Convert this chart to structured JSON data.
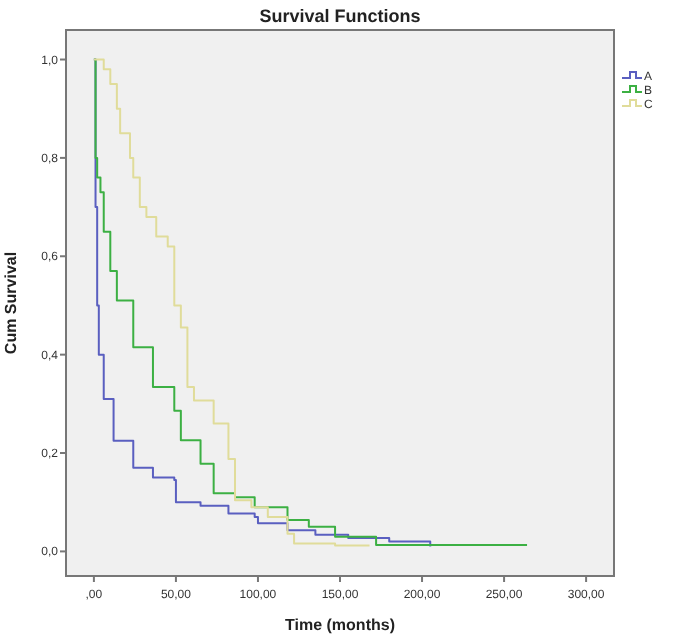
{
  "chart_data": {
    "type": "step",
    "title": "Survival Functions",
    "xlabel": "Time (months)",
    "ylabel": "Cum Survival",
    "xlim": [
      -17,
      317
    ],
    "ylim": [
      -0.05,
      1.06
    ],
    "xticks": [
      {
        "value": 0,
        "label": ",00"
      },
      {
        "value": 50,
        "label": "50,00"
      },
      {
        "value": 100,
        "label": "100,00"
      },
      {
        "value": 150,
        "label": "150,00"
      },
      {
        "value": 200,
        "label": "200,00"
      },
      {
        "value": 250,
        "label": "250,00"
      },
      {
        "value": 300,
        "label": "300,00"
      }
    ],
    "yticks": [
      {
        "value": 0,
        "label": "0,0"
      },
      {
        "value": 0.2,
        "label": "0,2"
      },
      {
        "value": 0.4,
        "label": "0,4"
      },
      {
        "value": 0.6,
        "label": "0,6"
      },
      {
        "value": 0.8,
        "label": "0,8"
      },
      {
        "value": 1,
        "label": "1,0"
      }
    ],
    "grid": false,
    "legend": "top right",
    "marker": "none",
    "line_style": "solid",
    "series": [
      {
        "name": "A",
        "color": "#5a5fc0",
        "x": [
          0,
          1,
          2,
          3,
          6,
          12,
          24,
          36,
          49,
          50,
          65,
          82,
          98,
          100,
          118,
          135,
          155,
          180,
          205
        ],
        "values": [
          1,
          0.7,
          0.5,
          0.4,
          0.31,
          0.225,
          0.17,
          0.15,
          0.145,
          0.1,
          0.093,
          0.077,
          0.07,
          0.057,
          0.043,
          0.034,
          0.027,
          0.02,
          0.01
        ]
      },
      {
        "name": "B",
        "color": "#3cb043",
        "x": [
          0,
          1,
          2,
          4,
          6,
          10,
          14,
          24,
          36,
          49,
          53,
          65,
          73,
          86,
          98,
          118,
          131,
          147,
          172,
          264
        ],
        "values": [
          1,
          0.8,
          0.76,
          0.73,
          0.65,
          0.57,
          0.51,
          0.415,
          0.334,
          0.286,
          0.226,
          0.178,
          0.118,
          0.11,
          0.09,
          0.064,
          0.05,
          0.03,
          0.013,
          0.013
        ]
      },
      {
        "name": "C",
        "color": "#e0dc9a",
        "x": [
          0,
          6,
          10,
          14,
          16,
          22,
          24,
          28,
          32,
          38,
          45,
          49,
          53,
          57,
          61,
          73,
          82,
          86,
          96,
          106,
          118,
          122,
          147,
          168
        ],
        "values": [
          1,
          0.98,
          0.95,
          0.9,
          0.85,
          0.8,
          0.76,
          0.7,
          0.68,
          0.64,
          0.62,
          0.5,
          0.455,
          0.334,
          0.307,
          0.26,
          0.188,
          0.104,
          0.09,
          0.07,
          0.036,
          0.016,
          0.012,
          0.012
        ]
      }
    ]
  }
}
